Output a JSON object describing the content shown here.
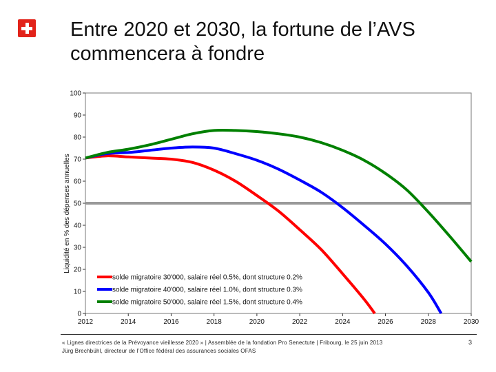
{
  "header": {
    "title_line1": "Entre 2020 et 2030, la fortune de l’AVS",
    "title_line2": "commencera à fondre"
  },
  "chart_data": {
    "type": "line",
    "title": "Entre 2020 et 2030, la fortune de l’AVS commencera à fondre",
    "xlabel": "",
    "ylabel": "Liquidité en % des dépenses annuelles",
    "xlim": [
      2012,
      2030
    ],
    "ylim": [
      0,
      100
    ],
    "x_ticks": [
      2012,
      2014,
      2016,
      2018,
      2020,
      2022,
      2024,
      2026,
      2028,
      2030
    ],
    "y_ticks": [
      0,
      10,
      20,
      30,
      40,
      50,
      60,
      70,
      80,
      90,
      100
    ],
    "grid": false,
    "legend_position": "bottom-left",
    "threshold": {
      "y": 50,
      "color": "#999999"
    },
    "series": [
      {
        "name": "solde migratoire 30'000, salaire réel 0.5%, dont structure 0.2%",
        "color": "#ff0000",
        "x": [
          2012,
          2013,
          2014,
          2015,
          2016,
          2017,
          2018,
          2019,
          2020,
          2021,
          2022,
          2023,
          2024,
          2025,
          2025.5
        ],
        "y": [
          70.5,
          71.5,
          71,
          70.5,
          70,
          68.5,
          65,
          60,
          53.5,
          46.5,
          38,
          29,
          18,
          6.5,
          0
        ]
      },
      {
        "name": "solde migratoire 40'000, salaire réel 1.0%, dont structure 0.3%",
        "color": "#0000ff",
        "x": [
          2012,
          2013,
          2014,
          2015,
          2016,
          2017,
          2018,
          2019,
          2020,
          2021,
          2022,
          2023,
          2024,
          2025,
          2026,
          2027,
          2028,
          2028.6
        ],
        "y": [
          70.5,
          72.5,
          73,
          74,
          75,
          75.5,
          75,
          72.5,
          69.5,
          65.5,
          60.5,
          55,
          48,
          40,
          31.5,
          21.5,
          9.5,
          0
        ]
      },
      {
        "name": "solde migratoire 50'000, salaire réel 1.5%, dont structure 0.4%",
        "color": "#008000",
        "x": [
          2012,
          2013,
          2014,
          2015,
          2016,
          2017,
          2018,
          2019,
          2020,
          2021,
          2022,
          2023,
          2024,
          2025,
          2026,
          2027,
          2028,
          2029,
          2030
        ],
        "y": [
          70.5,
          73,
          74.5,
          76.5,
          79,
          81.5,
          83,
          83,
          82.5,
          81.5,
          80,
          77.5,
          74,
          69.5,
          63.5,
          56,
          46,
          35,
          23.5
        ]
      }
    ]
  },
  "footer": {
    "line1": "« Lignes directrices de la Prévoyance vieillesse 2020 » | Assemblée de la fondation Pro Senectute | Fribourg, le 25 juin 2013",
    "line2": "Jürg Brechbühl, directeur de l’Office fédéral des assurances sociales OFAS",
    "page": "3"
  },
  "colors": {
    "logo_red": "#e2231a",
    "threshold_gray": "#999999"
  }
}
